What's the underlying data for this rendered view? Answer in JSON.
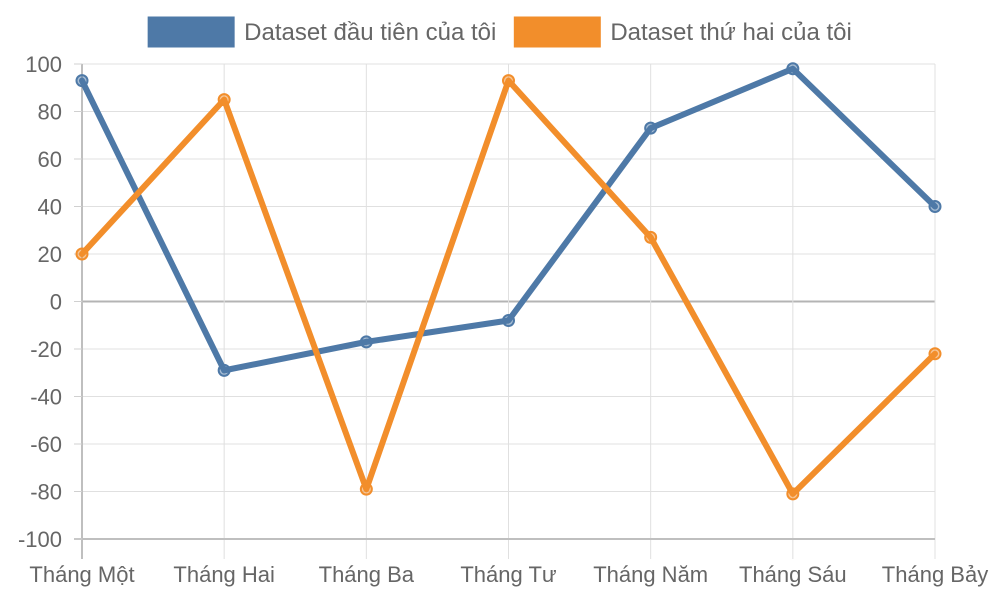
{
  "chart_data": {
    "type": "line",
    "categories": [
      "Tháng Một",
      "Tháng Hai",
      "Tháng Ba",
      "Tháng Tư",
      "Tháng Năm",
      "Tháng Sáu",
      "Tháng Bảy"
    ],
    "series": [
      {
        "name": "Dataset đầu tiên của tôi",
        "values": [
          93,
          -29,
          -17,
          -8,
          73,
          98,
          40
        ],
        "color": "#4e79a7"
      },
      {
        "name": "Dataset thứ hai của tôi",
        "values": [
          20,
          85,
          -79,
          93,
          27,
          -81,
          -22
        ],
        "color": "#f28e2b"
      }
    ],
    "ylim": [
      -100,
      100
    ],
    "yticks": [
      100,
      80,
      60,
      40,
      20,
      0,
      -20,
      -40,
      -60,
      -80,
      -100
    ],
    "grid": true,
    "legend_position": "top-center"
  }
}
